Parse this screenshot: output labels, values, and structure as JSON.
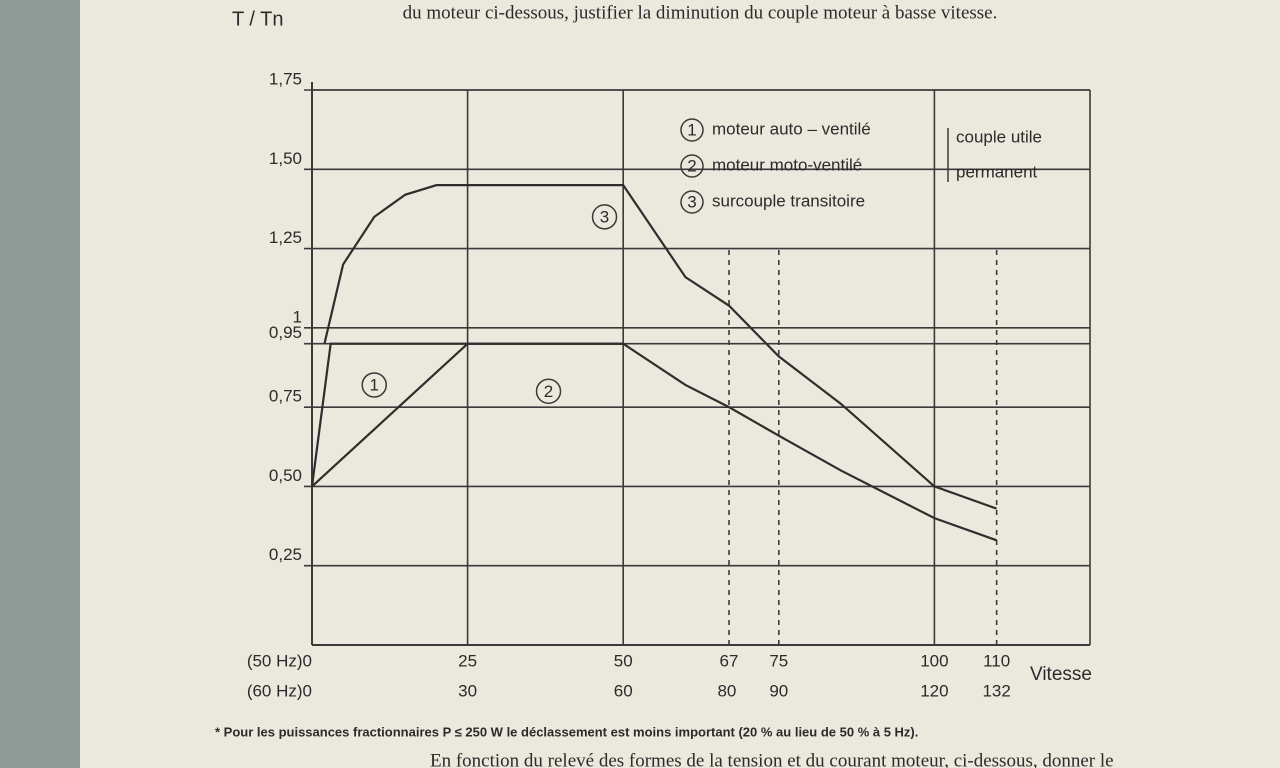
{
  "chart_data": {
    "type": "line",
    "header_text": "du moteur ci-dessous, justifier la diminution du couple moteur à basse vitesse.",
    "ylabel": "T / Tn",
    "xlabel": "Vitesse",
    "footnote": "* Pour les puissances fractionnaires P ≤ 250 W le déclassement est moins important (20 % au lieu de 50 % à 5 Hz).",
    "footer_text": "En fonction du relevé des formes de la tension et du courant moteur, ci-dessous, donner le",
    "xlim": [
      0,
      125
    ],
    "xticks": [
      {
        "value": 0,
        "label": "(50 Hz)0"
      },
      25,
      50,
      67,
      75,
      100,
      110
    ],
    "x_grid_dashed": [
      false,
      false,
      false,
      true,
      true,
      false,
      true
    ],
    "x2lim": [
      0,
      150
    ],
    "x2ticks": [
      {
        "value": 0,
        "label": "(60 Hz)0"
      },
      30,
      60,
      80,
      90,
      120,
      132
    ],
    "ylim": [
      0,
      1.75
    ],
    "yticks": [
      {
        "value": 0.25,
        "label": "0,25"
      },
      {
        "value": 0.5,
        "label": "0,50"
      },
      {
        "value": 0.75,
        "label": "0,75"
      },
      {
        "value": 0.95,
        "label": "0,95"
      },
      1,
      {
        "value": 1.25,
        "label": "1,25"
      },
      {
        "value": 1.5,
        "label": "1,50"
      },
      {
        "value": 1.75,
        "label": "1,75"
      }
    ],
    "grid": true,
    "legend_note": [
      "couple utile",
      "permanent"
    ],
    "series": [
      {
        "name": "moteur auto – ventilé",
        "number": "1",
        "color": "#2e2e2e",
        "x": [
          0,
          25,
          50,
          60,
          67,
          75,
          85,
          100,
          110
        ],
        "values": [
          0.5,
          0.95,
          0.95,
          0.82,
          0.75,
          0.66,
          0.55,
          0.4,
          0.33
        ]
      },
      {
        "name": "moteur moto-ventilé",
        "number": "2",
        "color": "#2e2e2e",
        "x": [
          0,
          3,
          50
        ],
        "values": [
          0.5,
          0.95,
          0.95
        ]
      },
      {
        "name": "surcouple transitoire",
        "number": "3",
        "color": "#2e2e2e",
        "x": [
          2,
          5,
          10,
          15,
          20,
          25,
          50,
          60,
          67,
          75,
          85,
          100,
          110
        ],
        "values": [
          0.95,
          1.2,
          1.35,
          1.42,
          1.45,
          1.45,
          1.45,
          1.16,
          1.07,
          0.91,
          0.76,
          0.5,
          0.43
        ]
      }
    ]
  }
}
